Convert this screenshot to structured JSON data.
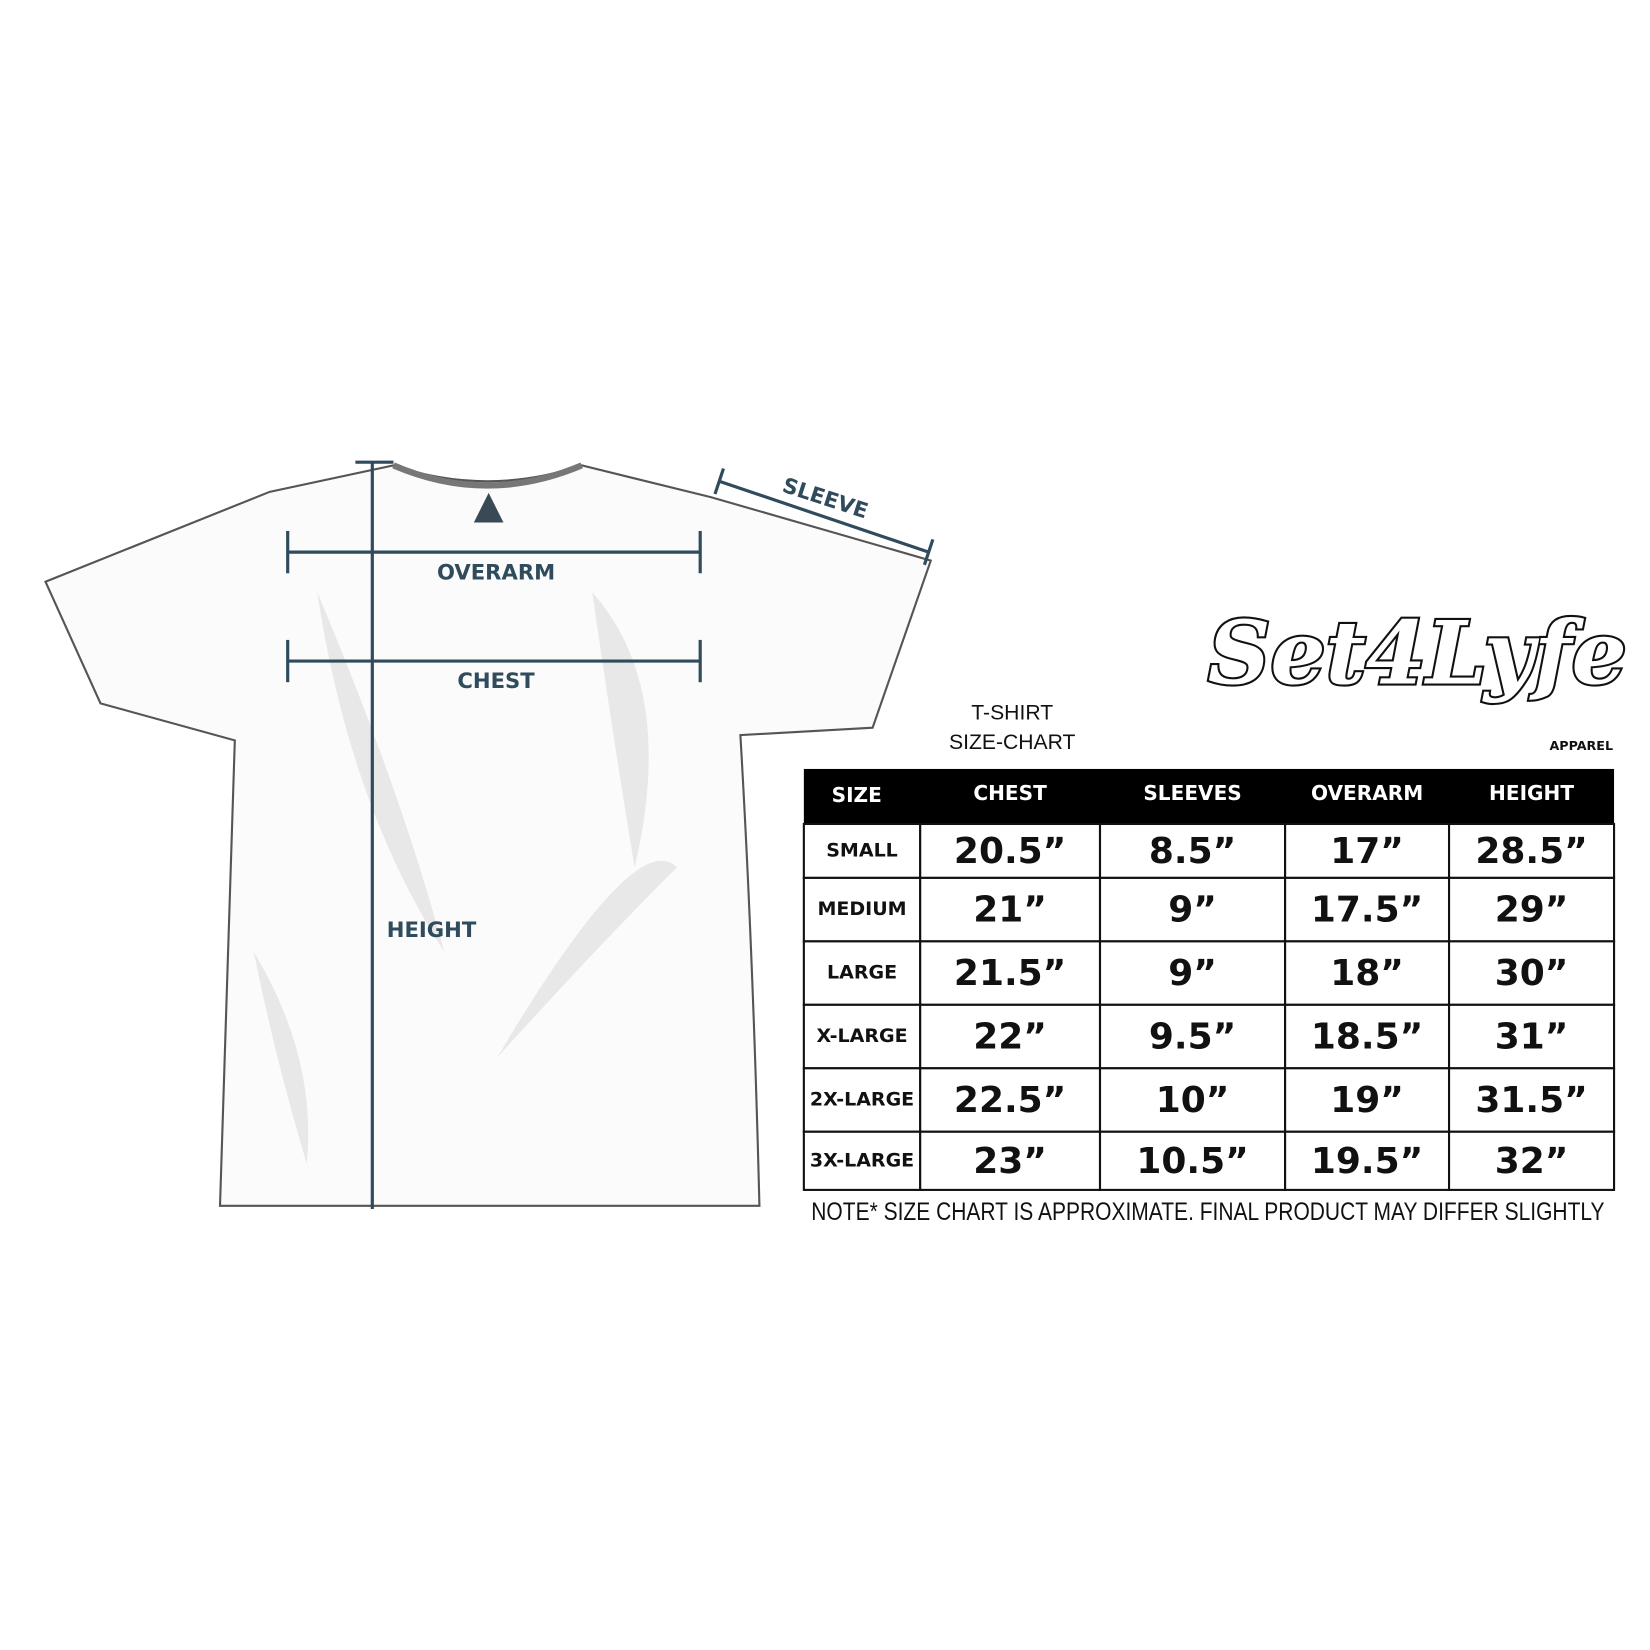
{
  "diagram": {
    "labels": {
      "sleeve": "SLEEVE",
      "overarm": "OVERARM",
      "chest": "CHEST",
      "height": "HEIGHT"
    }
  },
  "logo": {
    "name": "Set4Lyfe",
    "tagline": "APPAREL"
  },
  "size_chart": {
    "title": [
      "T-SHIRT",
      "SIZE-CHART"
    ],
    "header": [
      "SIZE",
      "CHEST",
      "SLEEVES",
      "OVERARM",
      "HEIGHT"
    ],
    "rows": [
      [
        "SMALL",
        "20.5”",
        "8.5”",
        "17”",
        "28.5”"
      ],
      [
        "MEDIUM",
        "21”",
        "9”",
        "17.5”",
        "29”"
      ],
      [
        "LARGE",
        "21.5”",
        "9”",
        "18”",
        "30”"
      ],
      [
        "X-LARGE",
        "22”",
        "9.5”",
        "18.5”",
        "31”"
      ],
      [
        "2X-LARGE",
        "22.5”",
        "10”",
        "19”",
        "31.5”"
      ],
      [
        "3X-LARGE",
        "23”",
        "10.5”",
        "19.5”",
        "32”"
      ]
    ],
    "note": "NOTE* SIZE CHART IS APPROXIMATE. FINAL PRODUCT MAY DIFFER SLIGHTLY"
  }
}
